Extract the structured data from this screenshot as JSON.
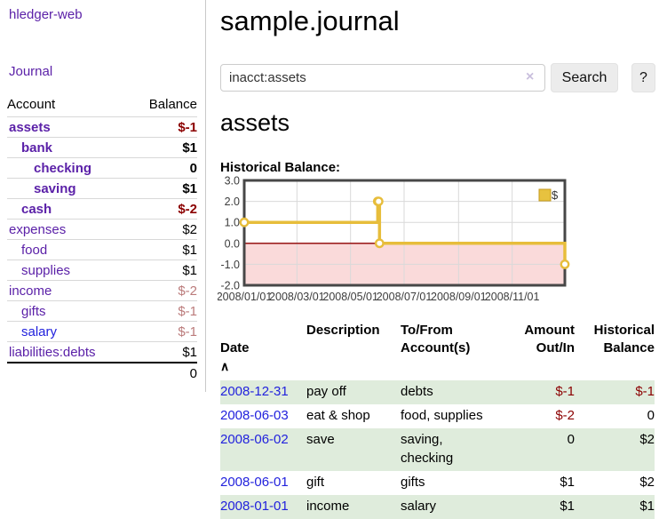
{
  "app": {
    "brand": "hledger-web",
    "nav": {
      "journal": "Journal"
    }
  },
  "sidebar": {
    "columns": {
      "account": "Account",
      "balance": "Balance"
    },
    "accounts": [
      {
        "name": "assets",
        "level": 0,
        "in_account": true,
        "balance": "$-1",
        "balance_style": "negative"
      },
      {
        "name": "bank",
        "level": 1,
        "in_account": true,
        "balance": "$1",
        "balance_style": "normal"
      },
      {
        "name": "checking",
        "level": 2,
        "in_account": true,
        "balance": "0",
        "balance_style": "normal"
      },
      {
        "name": "saving",
        "level": 2,
        "in_account": true,
        "balance": "$1",
        "balance_style": "normal"
      },
      {
        "name": "cash",
        "level": 1,
        "in_account": true,
        "balance": "$-2",
        "balance_style": "negative"
      },
      {
        "name": "expenses",
        "level": 0,
        "in_account": false,
        "balance": "$2",
        "balance_style": "normal"
      },
      {
        "name": "food",
        "level": 1,
        "in_account": false,
        "balance": "$1",
        "balance_style": "normal"
      },
      {
        "name": "supplies",
        "level": 1,
        "in_account": false,
        "balance": "$1",
        "balance_style": "normal"
      },
      {
        "name": "income",
        "level": 0,
        "in_account": false,
        "balance": "$-2",
        "balance_style": "negative-muted"
      },
      {
        "name": "gifts",
        "level": 1,
        "in_account": false,
        "balance": "$-1",
        "balance_style": "negative-muted"
      },
      {
        "name": "salary",
        "level": 1,
        "in_account": false,
        "link_style": "unvisited",
        "balance": "$-1",
        "balance_style": "negative-muted"
      },
      {
        "name": "liabilities:debts",
        "level": 0,
        "in_account": false,
        "balance": "$1",
        "balance_style": "normal"
      }
    ],
    "total": "0"
  },
  "main": {
    "title": "sample.journal",
    "search": {
      "value": "inacct:assets",
      "clear_icon": "×",
      "search_button": "Search",
      "help_button": "?"
    },
    "account_heading": "assets",
    "chart_title": "Historical Balance:"
  },
  "chart_data": {
    "type": "line",
    "step": true,
    "title": "Historical Balance",
    "legend": [
      {
        "label": "$",
        "color": "#e7c23f"
      }
    ],
    "legend_position": "top-right",
    "x_domain": [
      "2008/01/01",
      "2008/12/31"
    ],
    "x_ticks": [
      "2008/01/01",
      "2008/03/01",
      "2008/05/01",
      "2008/07/01",
      "2008/09/01",
      "2008/11/01"
    ],
    "y_ticks": [
      {
        "label": "3.0",
        "value": 3
      },
      {
        "label": "2.0",
        "value": 2
      },
      {
        "label": "1.0",
        "value": 1
      },
      {
        "label": "0.0",
        "value": 0
      },
      {
        "label": "-1.0",
        "value": -1
      },
      {
        "label": "-2.0",
        "value": -2
      }
    ],
    "ylim": [
      -2,
      3
    ],
    "series": [
      {
        "name": "$",
        "points": [
          [
            "2008/01/01",
            1
          ],
          [
            "2008/06/01",
            2
          ],
          [
            "2008/06/02",
            2
          ],
          [
            "2008/06/03",
            0
          ],
          [
            "2008/12/31",
            -1
          ]
        ]
      }
    ],
    "colors": {
      "line": "#e7bd3b",
      "marker_fill": "#ffffff",
      "legend_border": "#c49a1f",
      "negative_region": "#fadada",
      "zero_line": "#8f0000",
      "grid": "#d9d9d9",
      "border": "#474747",
      "tick_text": "#3c3c3c"
    }
  },
  "register": {
    "headers": {
      "date": "Date",
      "sort_icon": "∧",
      "description": "Description",
      "accounts": "To/From\nAccount(s)",
      "amount": "Amount\nOut/In",
      "balance": "Historical\nBalance"
    },
    "rows": [
      {
        "date": "2008-12-31",
        "description": "pay off",
        "accounts": "debts",
        "amount": "$-1",
        "amount_negative": true,
        "balance": "$-1",
        "balance_negative": true
      },
      {
        "date": "2008-06-03",
        "description": "eat & shop",
        "accounts": "food, supplies",
        "amount": "$-2",
        "amount_negative": true,
        "balance": "0",
        "balance_negative": false
      },
      {
        "date": "2008-06-02",
        "description": "save",
        "accounts": "saving, checking",
        "amount": "0",
        "amount_negative": false,
        "balance": "$2",
        "balance_negative": false
      },
      {
        "date": "2008-06-01",
        "description": "gift",
        "accounts": "gifts",
        "amount": "$1",
        "amount_negative": false,
        "balance": "$2",
        "balance_negative": false
      },
      {
        "date": "2008-01-01",
        "description": "income",
        "accounts": "salary",
        "amount": "$1",
        "amount_negative": false,
        "balance": "$1",
        "balance_negative": false
      }
    ]
  },
  "colors": {
    "accent_purple": "#5b21a8",
    "link_blue": "#2222dd",
    "negative": "#8b0000",
    "negative_muted": "#bb7b7b",
    "row_green": "#dfecdc"
  }
}
